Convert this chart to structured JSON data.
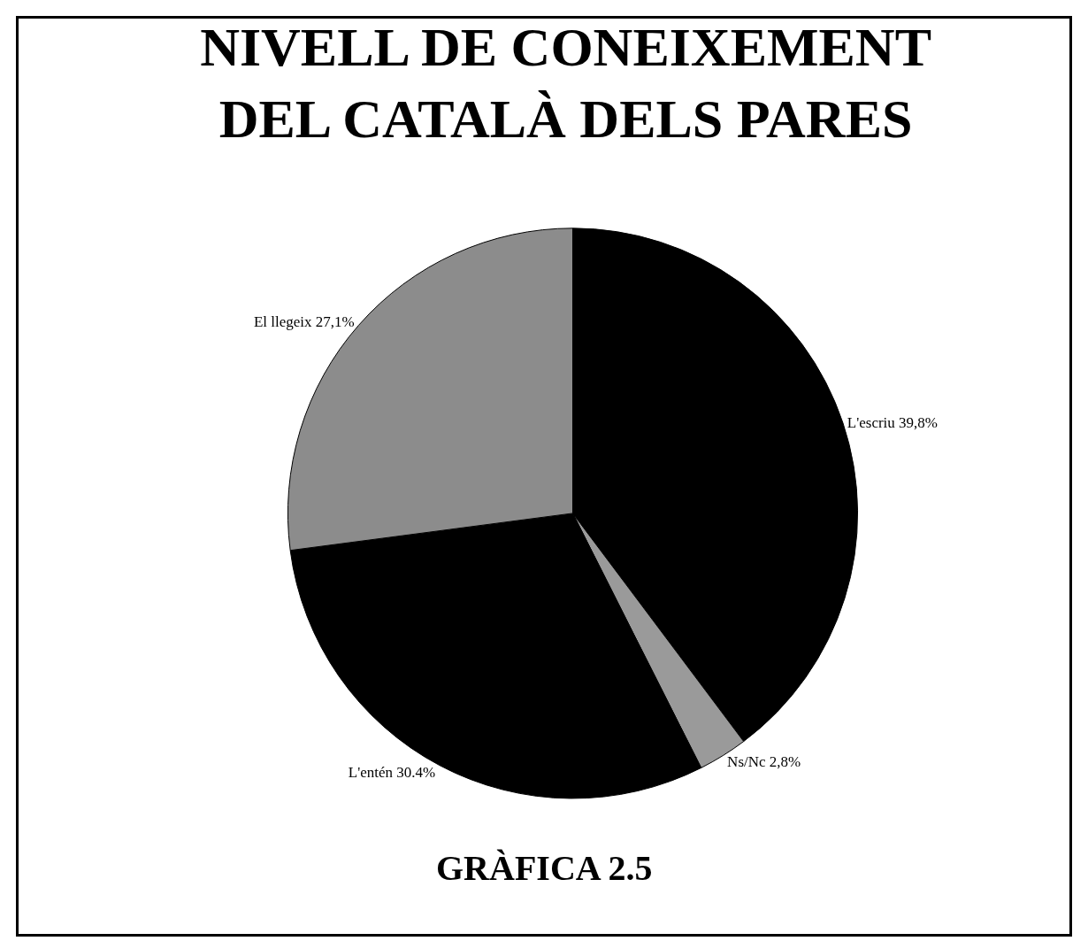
{
  "chart_data": {
    "type": "pie",
    "title": "NIVELL DE CONEIXEMENT\nDEL CATALÀ DELS PARES",
    "categories": [
      "L'escriu",
      "Ns/Nc",
      "L'entén",
      "El llegeix"
    ],
    "values": [
      39.8,
      2.8,
      30.4,
      27.1
    ],
    "value_labels": [
      "39,8%",
      "2,8%",
      "30.4%",
      "27,1%"
    ],
    "colors": [
      "#000000",
      "#9a9a9a",
      "#000000",
      "#8c8c8c"
    ],
    "legend": false,
    "annotations": [
      "GRÀFICA 2.5"
    ]
  }
}
